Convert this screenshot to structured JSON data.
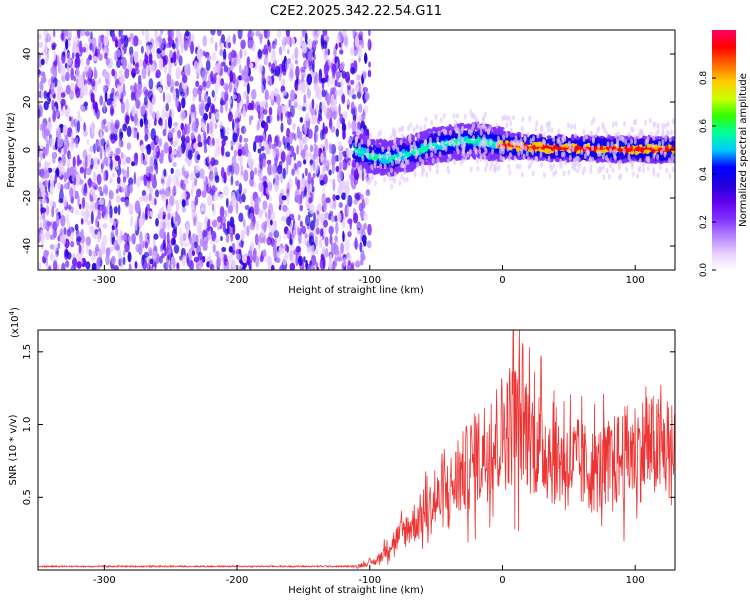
{
  "title": "C2E2.2025.342.22.54.G11",
  "colors": {
    "snr_line": "#ee3333",
    "background": "#ffffff",
    "axis": "#000000",
    "colormap": [
      "#ffffff",
      "#e6ccff",
      "#b380ff",
      "#8030ff",
      "#6000ee",
      "#2000dd",
      "#0000ff",
      "#00ccff",
      "#00ff99",
      "#33ff00",
      "#ccff00",
      "#ffcc00",
      "#ff6600",
      "#ff0000",
      "#ff0066"
    ]
  },
  "chart_data": [
    {
      "type": "heatmap",
      "name": "spectrogram",
      "xlabel": "Height of straight line (km)",
      "ylabel": "Frequency (Hz)",
      "xlim": [
        -350,
        130
      ],
      "ylim": [
        -50,
        50
      ],
      "xticks": [
        -300,
        -200,
        -100,
        0,
        100
      ],
      "xtick_labels": [
        "-300",
        "-200",
        "-100",
        "0",
        "100"
      ],
      "yticks": [
        -40,
        -20,
        0,
        20,
        40
      ],
      "ytick_labels": [
        "-40",
        "-20",
        "0",
        "20",
        "40"
      ],
      "noise_region_x": [
        -350,
        -100
      ],
      "signal_start_x": -112,
      "signal_ridge": [
        {
          "x": -112,
          "f": 0.5
        },
        {
          "x": -100,
          "f": -2.5
        },
        {
          "x": -85,
          "f": -3.5
        },
        {
          "x": -70,
          "f": -1.5
        },
        {
          "x": -55,
          "f": 1.5
        },
        {
          "x": -40,
          "f": 3
        },
        {
          "x": -20,
          "f": 4
        },
        {
          "x": 0,
          "f": 2
        },
        {
          "x": 30,
          "f": 1
        },
        {
          "x": 60,
          "f": 0.5
        },
        {
          "x": 100,
          "f": 0.3
        },
        {
          "x": 130,
          "f": 0.2
        }
      ],
      "colorbar": {
        "label": "Normalized spectral amplitude",
        "range": [
          0,
          1
        ],
        "ticks": [
          0.0,
          0.2,
          0.4,
          0.6,
          0.8
        ],
        "tick_labels": [
          "0.0",
          "0.2",
          "0.4",
          "0.6",
          "0.8"
        ]
      }
    },
    {
      "type": "line",
      "name": "snr",
      "xlabel": "Height of straight line (km)",
      "ylabel": "SNR (10 * v/v)",
      "yscale_label": "(x10",
      "yscale_exponent": "4",
      "xlim": [
        -350,
        130
      ],
      "ylim": [
        0,
        1.65
      ],
      "xticks": [
        -300,
        -200,
        -100,
        0,
        100
      ],
      "xtick_labels": [
        "-300",
        "-200",
        "-100",
        "0",
        "100"
      ],
      "yticks": [
        0.5,
        1.0,
        1.5
      ],
      "ytick_labels": [
        "0.5",
        "1.0",
        "1.5"
      ],
      "series": [
        {
          "name": "SNR",
          "envelope": [
            {
              "x": -350,
              "y": 0.025
            },
            {
              "x": -110,
              "y": 0.025
            },
            {
              "x": -95,
              "y": 0.06
            },
            {
              "x": -85,
              "y": 0.17
            },
            {
              "x": -70,
              "y": 0.3
            },
            {
              "x": -55,
              "y": 0.42
            },
            {
              "x": -40,
              "y": 0.55
            },
            {
              "x": -25,
              "y": 0.72
            },
            {
              "x": -10,
              "y": 0.85
            },
            {
              "x": 5,
              "y": 1.0
            },
            {
              "x": 15,
              "y": 1.02
            },
            {
              "x": 25,
              "y": 0.88
            },
            {
              "x": 40,
              "y": 0.78
            },
            {
              "x": 55,
              "y": 0.73
            },
            {
              "x": 70,
              "y": 0.68
            },
            {
              "x": 80,
              "y": 0.72
            },
            {
              "x": 95,
              "y": 0.8
            },
            {
              "x": 110,
              "y": 0.85
            },
            {
              "x": 130,
              "y": 0.8
            }
          ],
          "peak": {
            "x": 8,
            "y": 1.65
          }
        }
      ]
    }
  ]
}
